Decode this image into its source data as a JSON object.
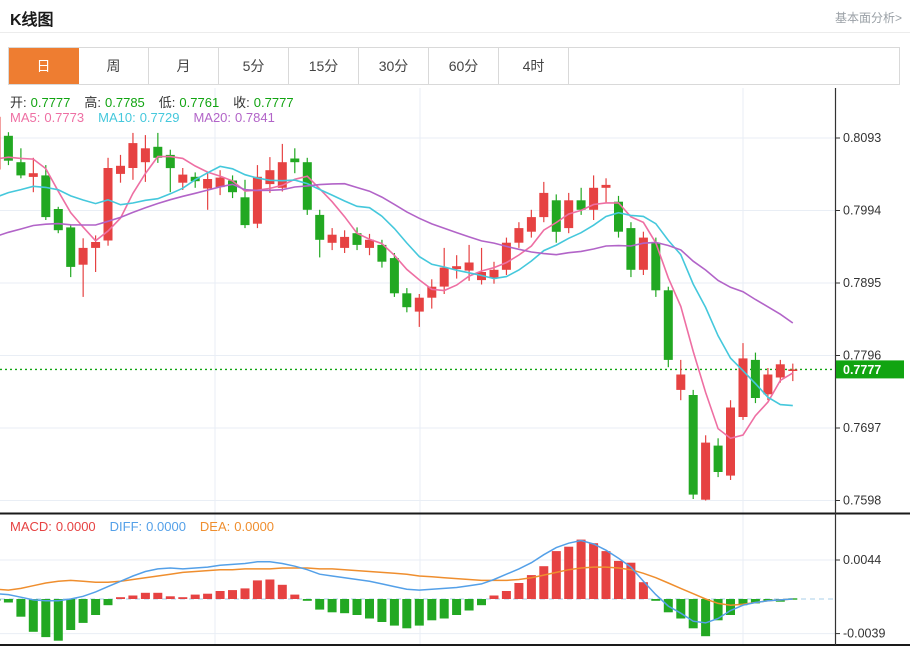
{
  "header": {
    "title": "K线图",
    "link": "基本面分析>"
  },
  "tabs": {
    "items": [
      "日",
      "周",
      "月",
      "5分",
      "15分",
      "30分",
      "60分",
      "4时"
    ],
    "selected_index": 0
  },
  "legend": {
    "open_label": "开:",
    "open": "0.7777",
    "high_label": "高:",
    "high": "0.7785",
    "low_label": "低:",
    "low": "0.7761",
    "close_label": "收:",
    "close": "0.7777",
    "ma5_label": "MA5:",
    "ma5": "0.7773",
    "ma10_label": "MA10:",
    "ma10": "0.7729",
    "ma20_label": "MA20:",
    "ma20": "0.7841"
  },
  "macd_legend": {
    "macd_label": "MACD:",
    "macd": "0.0000",
    "diff_label": "DIFF:",
    "diff": "0.0000",
    "dea_label": "DEA:",
    "dea": "0.0000"
  },
  "colors": {
    "up": "#e64242",
    "down": "#22a822",
    "ma5": "#ee6fa3",
    "ma10": "#45c8dc",
    "ma20": "#b264c8",
    "diff": "#54a0e8",
    "dea": "#ef8e2e",
    "price": "#11a411",
    "accent": "#ee7d31",
    "grid": "#e9eef5",
    "axis": "#333333",
    "zero_dash": "#a9cfe8",
    "label": "#333333"
  },
  "chart_data": {
    "type": "candlestick+macd",
    "title": "K线图",
    "legend_position": "top-left-overlay",
    "grid": true,
    "price_axis_ticks": [
      0.8093,
      0.7994,
      0.7895,
      0.7796,
      0.7697,
      0.7598
    ],
    "price_axis_range": [
      0.7585,
      0.8162
    ],
    "current_price": 0.7777,
    "current_price_line": "dotted-green",
    "macd_axis_ticks": [
      0.0044,
      -0.0039
    ],
    "ma_config": {
      "periods": [
        5,
        10,
        20
      ],
      "seeds": [
        0.805,
        0.8,
        0.795
      ]
    },
    "candles": [
      [
        0.805,
        0.813,
        0.804,
        0.8122
      ],
      [
        0.8096,
        0.8101,
        0.8056,
        0.8062
      ],
      [
        0.806,
        0.8079,
        0.8038,
        0.8042
      ],
      [
        0.804,
        0.8066,
        0.8019,
        0.8045
      ],
      [
        0.8042,
        0.8056,
        0.7981,
        0.7985
      ],
      [
        0.7996,
        0.7999,
        0.7963,
        0.7967
      ],
      [
        0.7971,
        0.7974,
        0.7903,
        0.7917
      ],
      [
        0.792,
        0.7956,
        0.7876,
        0.7943
      ],
      [
        0.7943,
        0.796,
        0.791,
        0.7951
      ],
      [
        0.7953,
        0.8066,
        0.7946,
        0.8052
      ],
      [
        0.8044,
        0.807,
        0.8032,
        0.8055
      ],
      [
        0.8052,
        0.81,
        0.8036,
        0.8086
      ],
      [
        0.806,
        0.8097,
        0.8033,
        0.8079
      ],
      [
        0.8081,
        0.81,
        0.8059,
        0.8066
      ],
      [
        0.807,
        0.8077,
        0.8019,
        0.8052
      ],
      [
        0.8032,
        0.8052,
        0.8022,
        0.8043
      ],
      [
        0.804,
        0.8046,
        0.8025,
        0.8034
      ],
      [
        0.8024,
        0.8046,
        0.7995,
        0.8037
      ],
      [
        0.8026,
        0.8049,
        0.8015,
        0.8039
      ],
      [
        0.8035,
        0.8042,
        0.8011,
        0.8019
      ],
      [
        0.8012,
        0.8036,
        0.797,
        0.7974
      ],
      [
        0.7976,
        0.8056,
        0.797,
        0.804
      ],
      [
        0.803,
        0.8067,
        0.8018,
        0.8049
      ],
      [
        0.8025,
        0.8085,
        0.802,
        0.806
      ],
      [
        0.8065,
        0.8079,
        0.8045,
        0.806
      ],
      [
        0.806,
        0.8066,
        0.7988,
        0.7995
      ],
      [
        0.7988,
        0.7995,
        0.793,
        0.7954
      ],
      [
        0.795,
        0.797,
        0.794,
        0.7961
      ],
      [
        0.7943,
        0.7967,
        0.7936,
        0.7958
      ],
      [
        0.7963,
        0.7971,
        0.794,
        0.7947
      ],
      [
        0.7943,
        0.7962,
        0.7933,
        0.7954
      ],
      [
        0.7947,
        0.7954,
        0.7916,
        0.7924
      ],
      [
        0.7929,
        0.7936,
        0.7876,
        0.7881
      ],
      [
        0.7881,
        0.7888,
        0.7855,
        0.7862
      ],
      [
        0.7856,
        0.788,
        0.7835,
        0.7875
      ],
      [
        0.7875,
        0.79,
        0.786,
        0.789
      ],
      [
        0.789,
        0.7943,
        0.788,
        0.7916
      ],
      [
        0.7914,
        0.7933,
        0.7901,
        0.7918
      ],
      [
        0.7912,
        0.7947,
        0.7898,
        0.7923
      ],
      [
        0.7899,
        0.7943,
        0.7893,
        0.791
      ],
      [
        0.7902,
        0.7924,
        0.7894,
        0.7913
      ],
      [
        0.7913,
        0.7957,
        0.7906,
        0.795
      ],
      [
        0.795,
        0.7978,
        0.7943,
        0.797
      ],
      [
        0.7965,
        0.7995,
        0.7957,
        0.7985
      ],
      [
        0.7985,
        0.8033,
        0.7978,
        0.8018
      ],
      [
        0.8008,
        0.8016,
        0.795,
        0.7965
      ],
      [
        0.797,
        0.8018,
        0.7963,
        0.8008
      ],
      [
        0.8008,
        0.8025,
        0.7988,
        0.7995
      ],
      [
        0.7995,
        0.8042,
        0.7981,
        0.8025
      ],
      [
        0.8025,
        0.8038,
        0.8004,
        0.8029
      ],
      [
        0.8006,
        0.8014,
        0.7957,
        0.7965
      ],
      [
        0.797,
        0.7978,
        0.7903,
        0.7913
      ],
      [
        0.7913,
        0.7965,
        0.7906,
        0.7957
      ],
      [
        0.795,
        0.7957,
        0.7876,
        0.7885
      ],
      [
        0.7885,
        0.789,
        0.778,
        0.779
      ],
      [
        0.7749,
        0.779,
        0.7735,
        0.777
      ],
      [
        0.7742,
        0.7749,
        0.76,
        0.7606
      ],
      [
        0.7599,
        0.7687,
        0.7598,
        0.7677
      ],
      [
        0.7673,
        0.7683,
        0.763,
        0.7637
      ],
      [
        0.7632,
        0.7735,
        0.7626,
        0.7725
      ],
      [
        0.7712,
        0.7813,
        0.7708,
        0.7792
      ],
      [
        0.779,
        0.78,
        0.7731,
        0.7738
      ],
      [
        0.7743,
        0.7779,
        0.7735,
        0.777
      ],
      [
        0.7766,
        0.779,
        0.7759,
        0.7784
      ],
      [
        0.7777,
        0.7785,
        0.7761,
        0.7777
      ]
    ],
    "macd": {
      "hist": [
        -0.0002,
        -0.0004,
        -0.002,
        -0.0037,
        -0.0043,
        -0.0047,
        -0.0035,
        -0.0027,
        -0.0018,
        -0.0007,
        0.0002,
        0.0004,
        0.0007,
        0.0007,
        0.0003,
        0.0002,
        0.0005,
        0.0006,
        0.0009,
        0.001,
        0.0012,
        0.0021,
        0.0022,
        0.0016,
        0.0005,
        -0.0002,
        -0.0012,
        -0.0015,
        -0.0016,
        -0.0018,
        -0.0022,
        -0.0026,
        -0.003,
        -0.0033,
        -0.003,
        -0.0024,
        -0.0022,
        -0.0018,
        -0.0013,
        -0.0007,
        0.0004,
        0.0009,
        0.0018,
        0.0027,
        0.0037,
        0.0054,
        0.0059,
        0.0067,
        0.0063,
        0.0054,
        0.0043,
        0.0041,
        0.0019,
        -0.0002,
        -0.0015,
        -0.0022,
        -0.0033,
        -0.0042,
        -0.0024,
        -0.0018,
        -0.0007,
        -0.0005,
        -0.0002,
        -0.0003,
        0.0
      ],
      "diff": [
        0.0006,
        0.0005,
        0.0002,
        -0.0001,
        -0.0002,
        -0.0002,
        0.0,
        0.0003,
        0.0008,
        0.0014,
        0.002,
        0.0026,
        0.0031,
        0.0034,
        0.0035,
        0.0034,
        0.0035,
        0.0036,
        0.0038,
        0.0039,
        0.004,
        0.0042,
        0.0042,
        0.004,
        0.0037,
        0.0033,
        0.0028,
        0.0026,
        0.0024,
        0.0022,
        0.002,
        0.0017,
        0.0014,
        0.0011,
        0.001,
        0.0011,
        0.0012,
        0.0013,
        0.0015,
        0.0017,
        0.0022,
        0.0028,
        0.0034,
        0.0041,
        0.005,
        0.0058,
        0.0063,
        0.0066,
        0.0062,
        0.0055,
        0.0046,
        0.0036,
        0.002,
        0.0005,
        -0.0008,
        -0.0016,
        -0.0025,
        -0.0027,
        -0.0022,
        -0.0013,
        -0.0007,
        -0.0004,
        -0.0002,
        -0.0001,
        0.0
      ],
      "dea": [
        0.0011,
        0.001,
        0.0012,
        0.0015,
        0.0018,
        0.002,
        0.0021,
        0.002,
        0.0019,
        0.0019,
        0.002,
        0.0022,
        0.0024,
        0.0026,
        0.0028,
        0.003,
        0.0031,
        0.0032,
        0.0033,
        0.0033,
        0.0034,
        0.0034,
        0.0034,
        0.0035,
        0.0035,
        0.0035,
        0.0034,
        0.0034,
        0.0033,
        0.0032,
        0.0031,
        0.003,
        0.0029,
        0.0028,
        0.0026,
        0.0025,
        0.0024,
        0.0023,
        0.0022,
        0.0021,
        0.0021,
        0.0021,
        0.0022,
        0.0024,
        0.0027,
        0.003,
        0.0033,
        0.0035,
        0.0036,
        0.0036,
        0.0035,
        0.0033,
        0.0029,
        0.0024,
        0.0018,
        0.0012,
        0.0006,
        0.0,
        -0.0005,
        -0.0007,
        -0.0006,
        -0.0004,
        -0.0002,
        -0.0001,
        0.0
      ]
    }
  }
}
